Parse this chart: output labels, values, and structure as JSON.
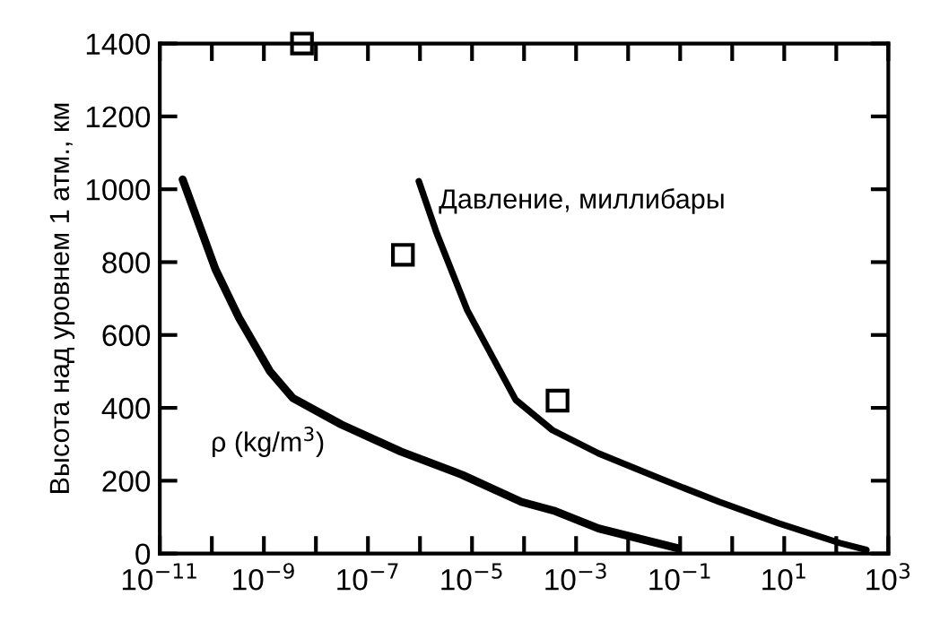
{
  "chart_data": {
    "type": "line",
    "ylabel": "Высота над уровнем 1 атм., км",
    "log": "x",
    "grid": false,
    "legend": false,
    "line_style": "solid",
    "marker": "none",
    "xlim": [
      1e-11,
      1000
    ],
    "ylim": [
      0,
      1400
    ],
    "xticks": [
      {
        "value": 1e-11,
        "label": "10$^{−11}$"
      },
      {
        "value": 1e-10,
        "label": null
      },
      {
        "value": 1e-09,
        "label": "10$^{−9}$"
      },
      {
        "value": 1e-08,
        "label": null
      },
      {
        "value": 1e-07,
        "label": "10$^{−7}$"
      },
      {
        "value": 1e-06,
        "label": null
      },
      {
        "value": 1e-05,
        "label": "10$^{−5}$"
      },
      {
        "value": 0.0001,
        "label": null
      },
      {
        "value": 0.001,
        "label": "10$^{−3}$"
      },
      {
        "value": 0.01,
        "label": null
      },
      {
        "value": 0.1,
        "label": "10$^{−1}$"
      },
      {
        "value": 1,
        "label": null
      },
      {
        "value": 10,
        "label": "10$^{1}$"
      },
      {
        "value": 100,
        "label": null
      },
      {
        "value": 1000,
        "label": "10$^{3}$"
      }
    ],
    "yticks": [
      0,
      200,
      400,
      600,
      800,
      1000,
      1200,
      1400
    ],
    "series": [
      {
        "name": "ρ (kg/m$^{3}$)",
        "color": "#000000",
        "x": [
          2.75e-11,
          1.17e-10,
          3.3e-10,
          1.3e-09,
          3.6e-09,
          3.1e-08,
          4.3e-07,
          6.5e-06,
          8.9e-05,
          0.00037,
          0.0027,
          0.089
        ],
        "values": [
          1027,
          781,
          648,
          501,
          427,
          354,
          280,
          216,
          142,
          118,
          69,
          15
        ]
      },
      {
        "name": "Давление, миллибары",
        "color": "#000000",
        "x": [
          9.5e-07,
          2.1e-06,
          8.1e-06,
          6.9e-05,
          0.00035,
          0.0027,
          0.041,
          0.56,
          7.8,
          117,
          380
        ],
        "values": [
          1022,
          879,
          668,
          422,
          339,
          275,
          206,
          142,
          83,
          29,
          10
        ]
      },
      {
        "type": "scatter",
        "marker": "square",
        "color": "#000000",
        "x": [
          5.4e-09,
          4.7e-07,
          0.00044
        ],
        "values": [
          1400,
          820,
          420
        ]
      }
    ]
  }
}
